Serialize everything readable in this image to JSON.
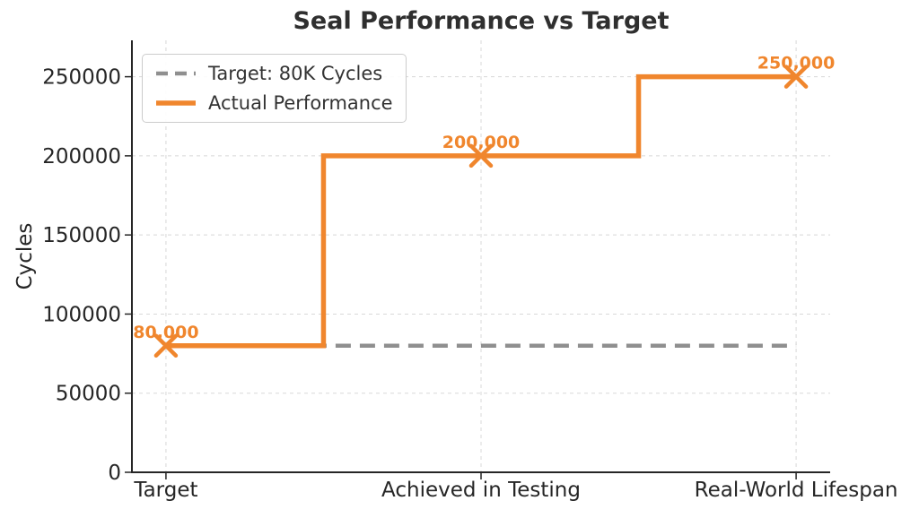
{
  "colors": {
    "actual": "#F0862D",
    "target": "#8F8F8F",
    "grid": "#D8D8D8",
    "spine": "#262626",
    "tick_label": "#262626",
    "title_text": "#2F2F2F",
    "legend_text": "#333333",
    "legend_border": "#CCCCCC",
    "background": "#FFFFFF"
  },
  "legend": {
    "position": "upper left",
    "items": [
      {
        "label": "Target: 80K Cycles",
        "line_style": "dashed",
        "color": "#8F8F8F"
      },
      {
        "label": "Actual Performance",
        "line_style": "solid",
        "color": "#F0862D"
      }
    ]
  },
  "chart_data": {
    "type": "line",
    "title": "Seal Performance vs Target",
    "xlabel": "",
    "ylabel": "Cycles",
    "categories": [
      "Target",
      "Achieved in Testing",
      "Real-World Lifespan"
    ],
    "series": [
      {
        "name": "Actual Performance",
        "style": "step-mid",
        "color": "#F0862D",
        "marker": "x",
        "values": [
          80000,
          200000,
          250000
        ],
        "point_labels": [
          "80,000",
          "200,000",
          "250,000"
        ]
      },
      {
        "name": "Target: 80K Cycles",
        "style": "dashed",
        "color": "#8F8F8F",
        "values": [
          80000,
          80000,
          80000
        ]
      }
    ],
    "yticks": [
      0,
      50000,
      100000,
      150000,
      200000,
      250000
    ],
    "ylim": [
      0,
      273000
    ],
    "grid": true,
    "grid_style": "dashed",
    "legend_position": "upper left"
  }
}
